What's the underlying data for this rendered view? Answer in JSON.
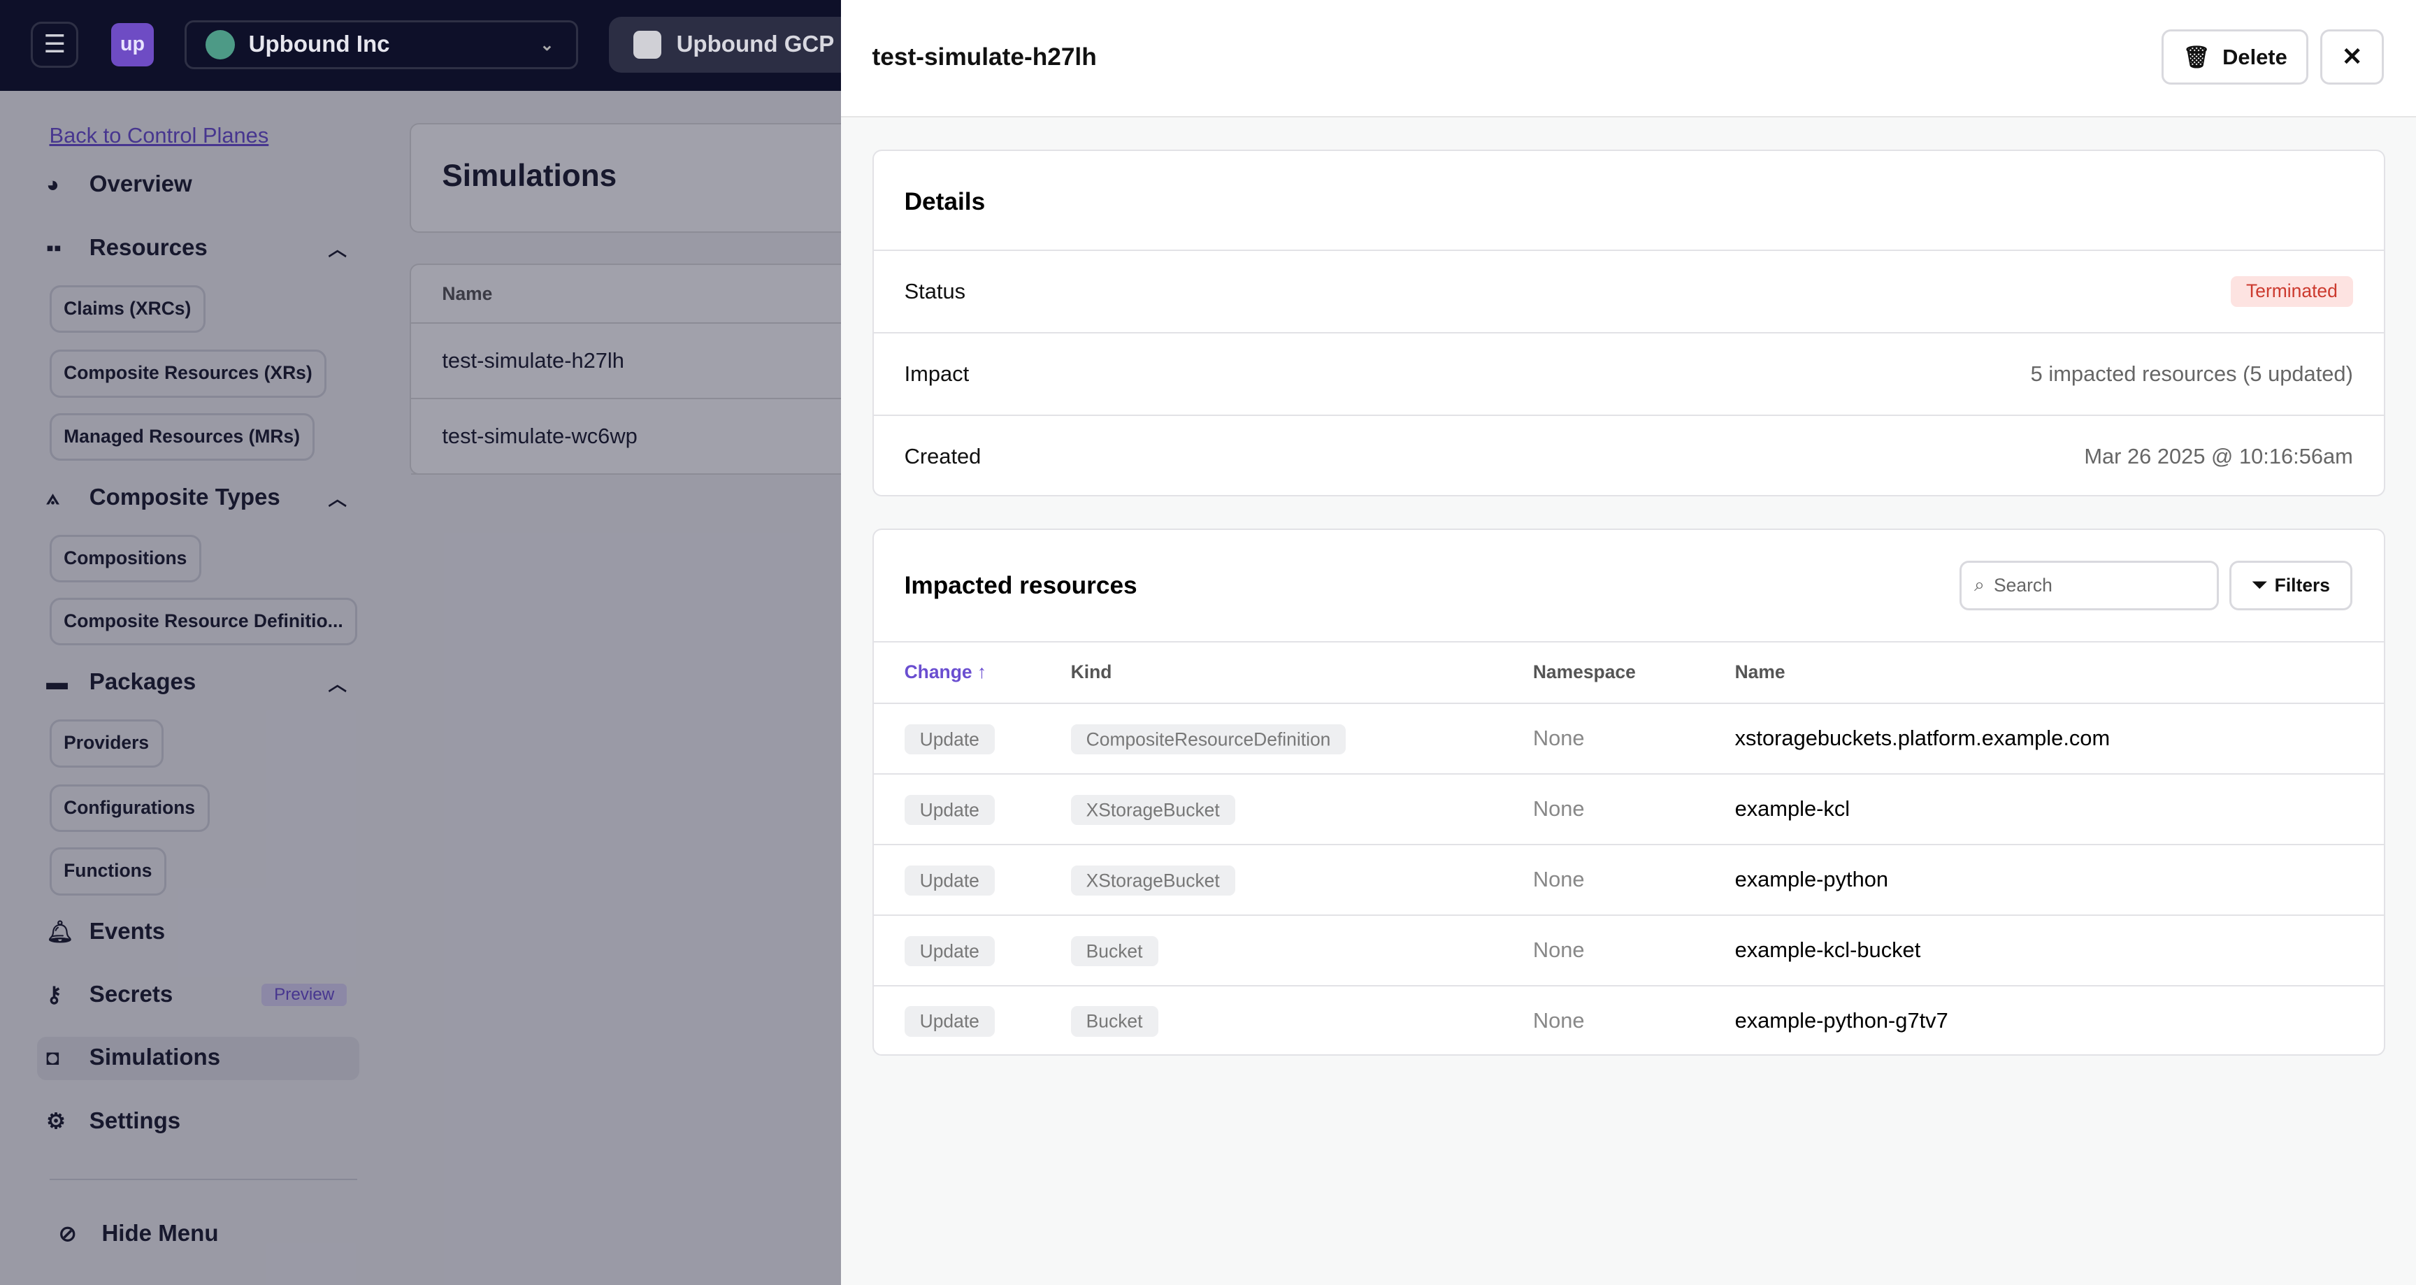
{
  "topbar": {
    "logo": "up",
    "org": "Upbound Inc",
    "control_plane": "Upbound GCP U"
  },
  "sidebar": {
    "back": "Back to Control Planes",
    "overview": "Overview",
    "resources": "Resources",
    "resource_items": [
      "Claims (XRCs)",
      "Composite Resources (XRs)",
      "Managed Resources (MRs)"
    ],
    "composite_types": "Composite Types",
    "composite_items": [
      "Compositions",
      "Composite Resource Definitio..."
    ],
    "packages": "Packages",
    "package_items": [
      "Providers",
      "Configurations",
      "Functions"
    ],
    "events": "Events",
    "secrets": "Secrets",
    "secrets_badge": "Preview",
    "simulations": "Simulations",
    "settings": "Settings",
    "hide_menu": "Hide Menu"
  },
  "main": {
    "title": "Simulations",
    "col_name": "Name",
    "rows": [
      "test-simulate-h27lh",
      "test-simulate-wc6wp"
    ]
  },
  "drawer": {
    "title": "test-simulate-h27lh",
    "delete": "Delete",
    "details": {
      "heading": "Details",
      "status_label": "Status",
      "status": "Terminated",
      "impact_label": "Impact",
      "impact": "5 impacted resources (5 updated)",
      "created_label": "Created",
      "created": "Mar 26 2025 @ 10:16:56am"
    },
    "impacted": {
      "heading": "Impacted resources",
      "search_placeholder": "Search",
      "filters": "Filters",
      "columns": [
        "Change ↑",
        "Kind",
        "Namespace",
        "Name"
      ],
      "rows": [
        {
          "change": "Update",
          "kind": "CompositeResourceDefinition",
          "namespace": "None",
          "name": "xstoragebuckets.platform.example.com"
        },
        {
          "change": "Update",
          "kind": "XStorageBucket",
          "namespace": "None",
          "name": "example-kcl"
        },
        {
          "change": "Update",
          "kind": "XStorageBucket",
          "namespace": "None",
          "name": "example-python"
        },
        {
          "change": "Update",
          "kind": "Bucket",
          "namespace": "None",
          "name": "example-kcl-bucket"
        },
        {
          "change": "Update",
          "kind": "Bucket",
          "namespace": "None",
          "name": "example-python-g7tv7"
        }
      ]
    }
  },
  "colors": {
    "accent": "#6a4ed0",
    "topbar": "#0e1029",
    "terminated": "#cc3a2e"
  }
}
